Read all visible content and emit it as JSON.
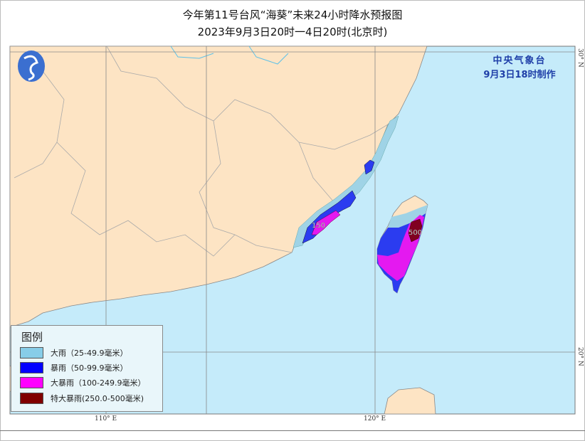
{
  "title": "今年第11号台风“海葵”未来24小时降水预报图",
  "subtitle": "2023年9月3日20时一4日20时(北京时)",
  "agency": {
    "name": "中央气象台",
    "issued": "9月3日18时制作"
  },
  "legend": {
    "title": "图例",
    "items": [
      {
        "label": "大雨（25-49.9毫米）",
        "color": "#87cde8"
      },
      {
        "label": "暴雨（50-99.9毫米）",
        "color": "#0000ff"
      },
      {
        "label": "大暴雨（100-249.9毫米）",
        "color": "#ff00ff"
      },
      {
        "label": "特大暴雨(250.0-500毫米)",
        "color": "#800000"
      }
    ]
  },
  "axes": {
    "lon": [
      "110° E",
      "120° E"
    ],
    "lat": [
      "30° N",
      "20° N"
    ]
  },
  "contour_labels": [
    "150",
    "500"
  ],
  "colors": {
    "land": "#fde4c4",
    "sea": "#c5ebfa",
    "agency_text": "#1f3fa8"
  }
}
